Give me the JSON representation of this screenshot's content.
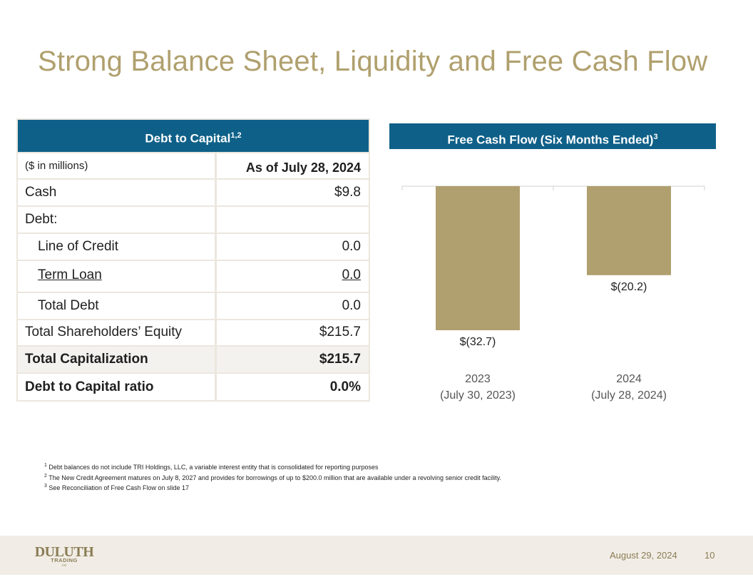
{
  "title": "Strong Balance Sheet, Liquidity and Free Cash Flow",
  "debt_table": {
    "header": "Debt to Capital",
    "header_sup": "1,2",
    "col_label": "($ in millions)",
    "col_date": "As of July 28, 2024",
    "rows": [
      {
        "label": "Cash",
        "value": "$9.8"
      },
      {
        "label": "Debt:",
        "value": ""
      },
      {
        "label": "Line of Credit",
        "value": "0.0"
      },
      {
        "label": "Term Loan",
        "value": "0.0"
      },
      {
        "label": "Total Debt",
        "value": "0.0"
      },
      {
        "label": "Total Shareholders’ Equity",
        "value": "$215.7"
      },
      {
        "label": "Total Capitalization",
        "value": "$215.7"
      },
      {
        "label": "Debt to Capital ratio",
        "value": "0.0%"
      }
    ]
  },
  "fcf": {
    "header": "Free Cash Flow (Six Months Ended)",
    "header_sup": "3"
  },
  "chart_data": {
    "type": "bar",
    "title": "Free Cash Flow (Six Months Ended)",
    "categories": [
      "2023",
      "2024"
    ],
    "category_sublabels": [
      "(July 30, 2023)",
      "(July 28, 2024)"
    ],
    "values": [
      -32.7,
      -20.2
    ],
    "value_labels": [
      "$(32.7)",
      "$(20.2)"
    ],
    "ylim": [
      -32.7,
      0
    ],
    "bar_color": "#b09f6f",
    "xlabel": "",
    "ylabel": ""
  },
  "footnotes": [
    {
      "n": "1",
      "text": "Debt balances do not include TRI Holdings, LLC, a variable interest entity that is consolidated for reporting purposes"
    },
    {
      "n": "2",
      "text": "The New Credit Agreement matures on July 8, 2027 and provides for borrowings of up to $200.0 million that are available under a revolving senior credit facility."
    },
    {
      "n": "3",
      "text": "See Reconciliation of Free Cash Flow on slide 17"
    }
  ],
  "footer": {
    "logo_line1": "DULUTH",
    "logo_line2": "TRADING",
    "logo_line3": "CO",
    "date": "August 29, 2024",
    "page": "10"
  },
  "colors": {
    "title": "#b0a06e",
    "header_bg": "#0e6088",
    "bar": "#b09f6f"
  }
}
